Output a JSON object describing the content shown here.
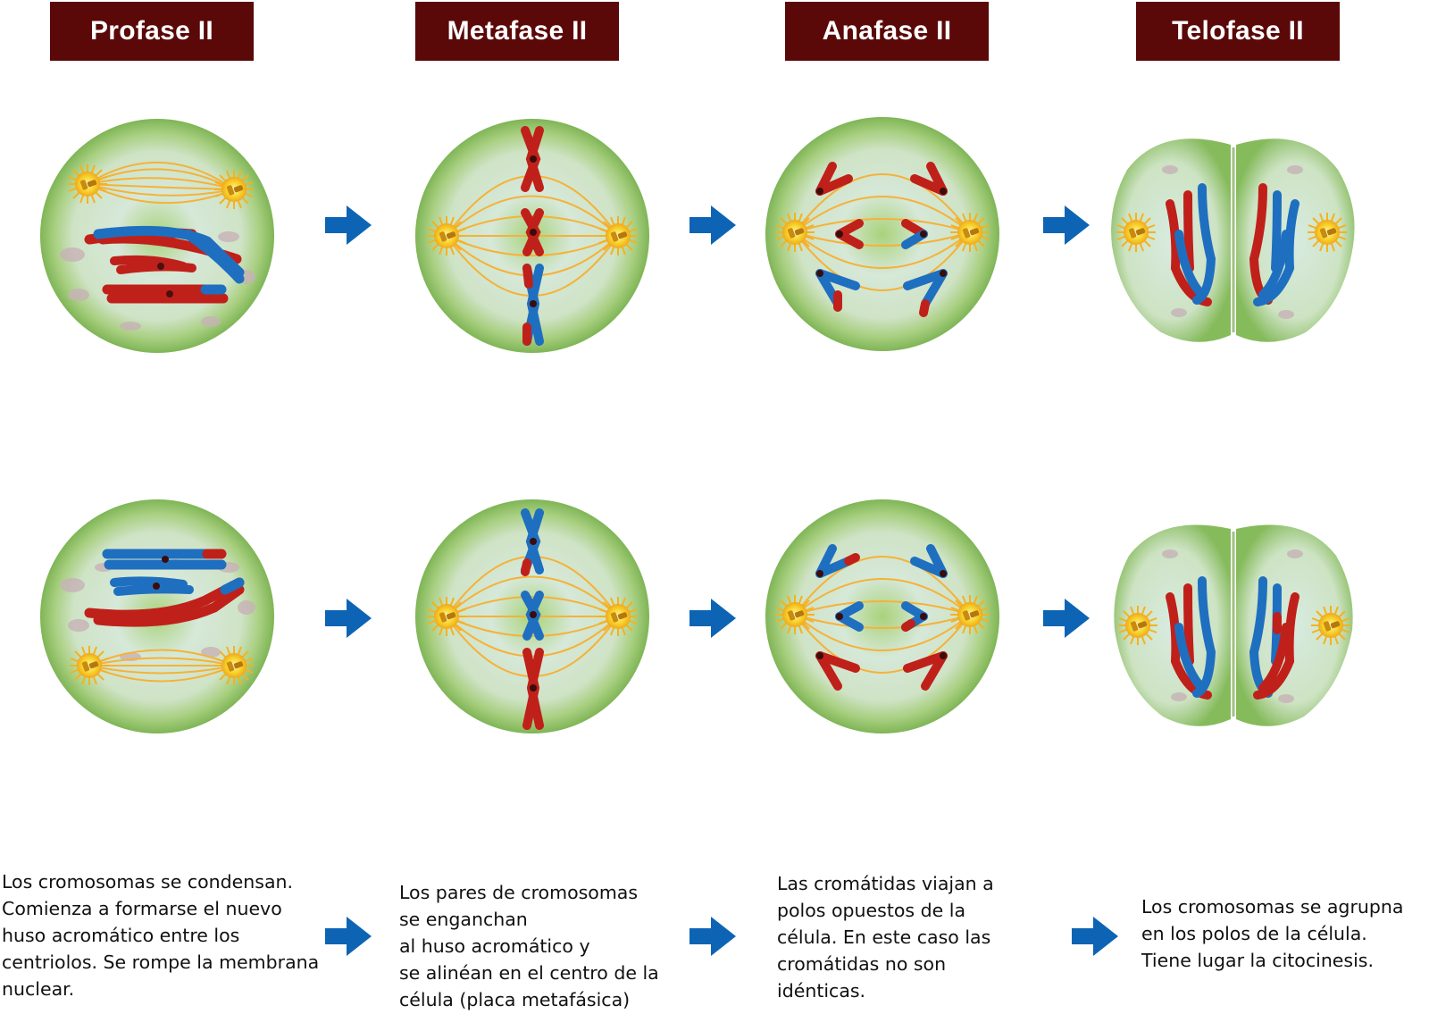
{
  "phases": [
    {
      "title": "Profase II",
      "description": "Los cromosomas se condensan.\nComienza a formarse el nuevo\nhuso acromático entre los\ncentriolos. Se rompe la membrana\nnuclear."
    },
    {
      "title": "Metafase II",
      "description": "Los pares de cromosomas\nse enganchan\nal huso acromático y\nse alinéan en el centro de la\ncélula (placa metafásica)"
    },
    {
      "title": "Anafase II",
      "description": "Las cromátidas viajan a\npolos opuestos de la\ncélula. En este caso las\ncromátidas no son\nidénticas."
    },
    {
      "title": "Telofase II",
      "description": "Los cromosomas se agrupna\nen los polos de la célula.\nTiene lugar la citocinesis."
    }
  ],
  "icons": {
    "arrow": "right-arrow-icon"
  },
  "colors": {
    "title_bg": "#5a0808",
    "cell_outer": "#8cc063",
    "cell_inner": "#cfe3c9",
    "chromosome_red": "#c0201a",
    "chromosome_blue": "#1f6fc0",
    "spindle": "#f5a623",
    "centrosome": "#f7d22a",
    "arrow": "#0e64b4"
  }
}
